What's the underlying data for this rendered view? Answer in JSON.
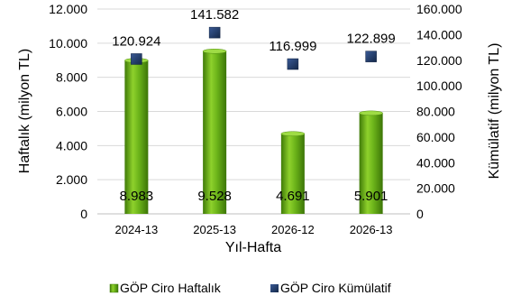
{
  "chart_data": {
    "type": "bar",
    "categories": [
      "2024-13",
      "2025-13",
      "2026-12",
      "2026-13"
    ],
    "xlabel": "Yıl-Hafta",
    "ylabel": "Haftalık (milyon TL)",
    "y2label": "Kümülatif (milyon TL)",
    "ylim": [
      0,
      12000
    ],
    "y2lim": [
      0,
      160000
    ],
    "yticks": [
      "0",
      "2.000",
      "4.000",
      "6.000",
      "8.000",
      "10.000",
      "12.000"
    ],
    "y2ticks": [
      "0",
      "20.000",
      "40.000",
      "60.000",
      "80.000",
      "100.000",
      "120.000",
      "140.000",
      "160.000"
    ],
    "grid": true,
    "legend": "bottom",
    "series": [
      {
        "name": "GÖP Ciro Haftalık",
        "type": "bar",
        "axis": "left",
        "color": "#5fa414",
        "values": [
          8983,
          9528,
          4691,
          5901
        ],
        "labels": [
          "8.983",
          "9.528",
          "4.691",
          "5.901"
        ]
      },
      {
        "name": "GÖP Ciro Kümülatif",
        "type": "scatter",
        "axis": "right",
        "color": "#1f3864",
        "values": [
          120924,
          141582,
          116999,
          122899
        ],
        "labels": [
          "120.924",
          "141.582",
          "116.999",
          "122.899"
        ]
      }
    ]
  }
}
